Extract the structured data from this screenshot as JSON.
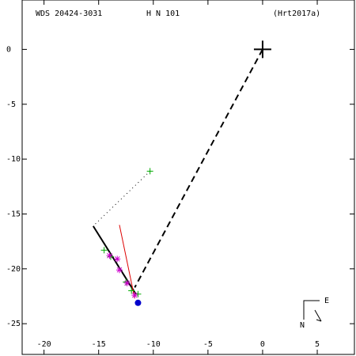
{
  "chart_data": {
    "type": "scatter",
    "header": [
      "WDS 20424-3031",
      "H N 101",
      "(Hrt2017a)"
    ],
    "xlim": [
      -22.0,
      8.4
    ],
    "ylim": [
      -27.8,
      4.5
    ],
    "xticks": [
      -20,
      -15,
      -10,
      -5,
      0,
      5
    ],
    "yticks": [
      0,
      -5,
      -10,
      -15,
      -20,
      -25
    ],
    "compass": [
      "E",
      "N"
    ],
    "series": [
      {
        "marker": "line",
        "dash": "dashed",
        "color": "#000000",
        "x": [
          0,
          -11.7
        ],
        "y": [
          0,
          -21.7
        ]
      },
      {
        "marker": "line",
        "dash": "solid",
        "color": "#000000",
        "x": [
          -15.5,
          -11.6
        ],
        "y": [
          -16.1,
          -22.3
        ]
      },
      {
        "marker": "line",
        "dash": "dotted",
        "color": "#000000",
        "x": [
          -10.3,
          -15.5
        ],
        "y": [
          -11.1,
          -16.1
        ]
      },
      {
        "marker": "line",
        "dash": "solid",
        "color": "#dd0000",
        "x": [
          -13.1,
          -11.7
        ],
        "y": [
          -16.0,
          -22.7
        ]
      },
      {
        "marker": "plus",
        "color": "#00aa00",
        "x": [
          -10.3,
          -14.5,
          -13.9,
          -12.5,
          -12.0,
          -11.4
        ],
        "y": [
          -11.1,
          -18.3,
          -18.9,
          -21.2,
          -22.0,
          -22.3
        ]
      },
      {
        "marker": "asterisk",
        "color": "#cc00cc",
        "x": [
          -14.0,
          -13.3,
          -13.1,
          -12.4,
          -11.7
        ],
        "y": [
          -18.8,
          -19.1,
          -20.1,
          -21.3,
          -22.4
        ]
      },
      {
        "marker": "dot",
        "color": "#0000cc",
        "x": [
          -11.4
        ],
        "y": [
          -23.1
        ]
      },
      {
        "marker": "bigplus",
        "color": "#000000",
        "x": [
          0
        ],
        "y": [
          0
        ]
      }
    ]
  }
}
